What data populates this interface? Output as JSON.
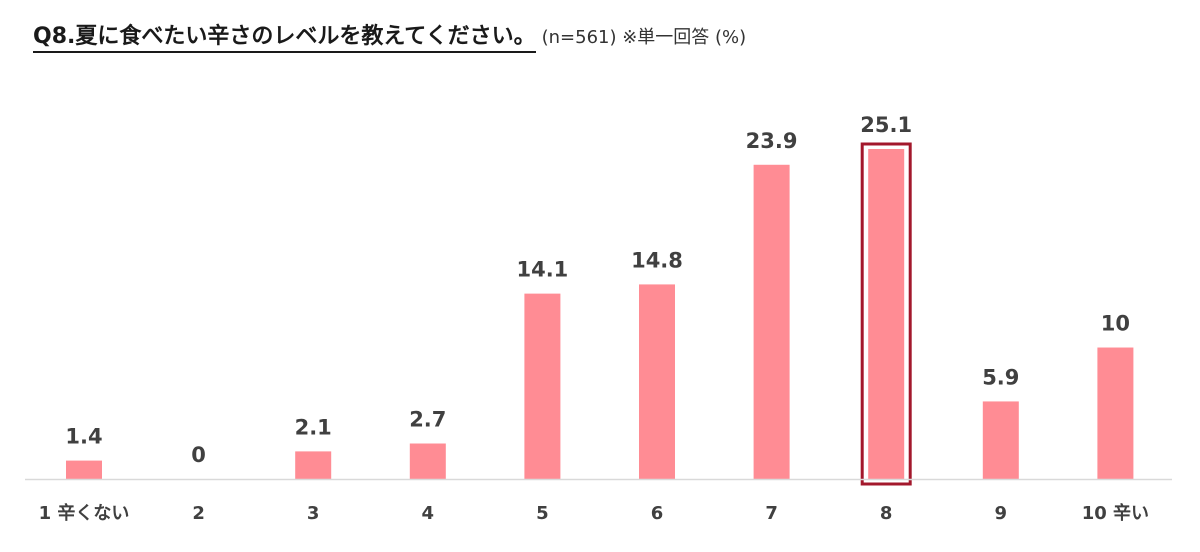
{
  "title": {
    "main": "Q8.夏に食べたい辛さのレベルを教えてください。",
    "note": "(n=561) ※単一回答 (%)"
  },
  "chart_data": {
    "type": "bar",
    "categories": [
      "1 辛くない",
      "2",
      "3",
      "4",
      "5",
      "6",
      "7",
      "8",
      "9",
      "10 辛い"
    ],
    "series": [
      {
        "values": [
          1.4,
          0,
          2.1,
          2.7,
          14.1,
          14.8,
          23.9,
          25.1,
          5.9,
          10
        ]
      }
    ],
    "value_labels": [
      "1.4",
      "0",
      "2.1",
      "2.7",
      "14.1",
      "14.8",
      "23.9",
      "25.1",
      "5.9",
      "10"
    ],
    "highlight_category": "8",
    "ylim": [
      0,
      25.1
    ],
    "grid": false,
    "legend": "none",
    "colors": {
      "bar": "#ff8c94",
      "highlight_border": "#a3182c",
      "axis": "#d9d9d9",
      "label": "#404040"
    }
  }
}
